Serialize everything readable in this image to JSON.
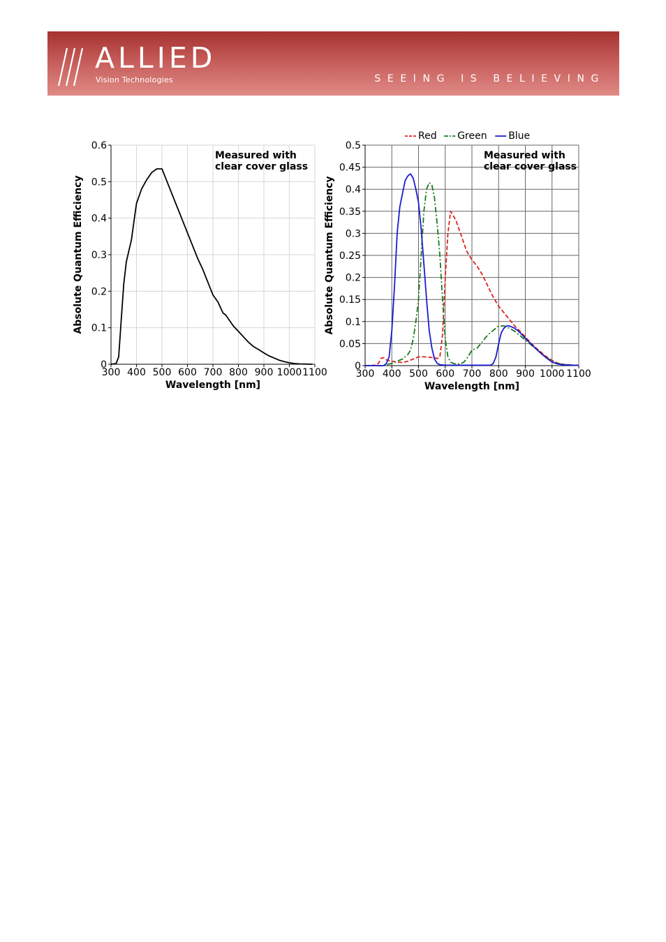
{
  "header": {
    "logo_text": "ALLIED",
    "logo_subtext": "Vision Technologies",
    "tagline": "SEEING IS BELIEVING"
  },
  "chart_data": [
    {
      "type": "line",
      "xlabel": "Wavelength [nm]",
      "ylabel": "Absolute Quantum Efficiency",
      "annotation": [
        "Measured with",
        "clear cover glass"
      ],
      "xlim": [
        300,
        1100
      ],
      "ylim": [
        0,
        0.6
      ],
      "xticks": [
        "300",
        "400",
        "500",
        "600",
        "700",
        "800",
        "900",
        "1000",
        "1100"
      ],
      "yticks": [
        "0",
        "0.1",
        "0.2",
        "0.3",
        "0.4",
        "0.5",
        "0.6"
      ],
      "grid": true,
      "series": [
        {
          "color": "#000000",
          "style": "solid",
          "x": [
            300,
            320,
            330,
            340,
            350,
            360,
            370,
            380,
            390,
            400,
            420,
            440,
            460,
            480,
            500,
            520,
            540,
            560,
            580,
            600,
            620,
            640,
            660,
            680,
            700,
            720,
            730,
            740,
            750,
            760,
            780,
            800,
            820,
            840,
            860,
            880,
            900,
            920,
            940,
            960,
            980,
            1000,
            1020,
            1040,
            1060,
            1080,
            1090
          ],
          "y": [
            0,
            0.002,
            0.02,
            0.12,
            0.22,
            0.28,
            0.31,
            0.34,
            0.39,
            0.44,
            0.48,
            0.505,
            0.525,
            0.535,
            0.535,
            0.5,
            0.465,
            0.43,
            0.395,
            0.36,
            0.325,
            0.29,
            0.26,
            0.225,
            0.19,
            0.17,
            0.155,
            0.14,
            0.135,
            0.125,
            0.105,
            0.09,
            0.075,
            0.06,
            0.048,
            0.04,
            0.031,
            0.023,
            0.017,
            0.011,
            0.007,
            0.004,
            0.002,
            0.001,
            0.0005,
            0.0002,
            0
          ]
        }
      ]
    },
    {
      "type": "line",
      "xlabel": "Wavelength [nm]",
      "ylabel": "Absolute Quantum Efficiency",
      "annotation": [
        "Measured with",
        "clear cover glass"
      ],
      "xlim": [
        300,
        1100
      ],
      "ylim": [
        0,
        0.5
      ],
      "xticks": [
        "300",
        "400",
        "500",
        "600",
        "700",
        "800",
        "900",
        "1000",
        "1100"
      ],
      "yticks": [
        "0",
        "0.05",
        "0.1",
        "0.15",
        "0.2",
        "0.25",
        "0.3",
        "0.35",
        "0.4",
        "0.45",
        "0.5"
      ],
      "grid": true,
      "legend_position": "top",
      "series": [
        {
          "name": "Red",
          "color": "#e02020",
          "style": "dashed",
          "x": [
            300,
            340,
            350,
            360,
            370,
            380,
            400,
            420,
            440,
            460,
            480,
            500,
            520,
            540,
            560,
            570,
            580,
            590,
            600,
            610,
            620,
            630,
            640,
            660,
            680,
            700,
            720,
            740,
            760,
            780,
            800,
            820,
            840,
            860,
            880,
            900,
            920,
            940,
            960,
            980,
            1000,
            1020,
            1040,
            1060,
            1080,
            1100
          ],
          "y": [
            0,
            0.001,
            0.005,
            0.017,
            0.018,
            0.013,
            0.01,
            0.008,
            0.007,
            0.01,
            0.015,
            0.02,
            0.02,
            0.019,
            0.018,
            0.016,
            0.02,
            0.07,
            0.2,
            0.3,
            0.35,
            0.34,
            0.33,
            0.295,
            0.26,
            0.24,
            0.225,
            0.205,
            0.18,
            0.155,
            0.135,
            0.12,
            0.105,
            0.09,
            0.078,
            0.065,
            0.052,
            0.04,
            0.03,
            0.02,
            0.012,
            0.006,
            0.003,
            0.002,
            0.001,
            0.001
          ]
        },
        {
          "name": "Green",
          "color": "#1a7a1a",
          "style": "dashdot",
          "x": [
            300,
            370,
            380,
            400,
            420,
            440,
            460,
            470,
            480,
            490,
            500,
            510,
            520,
            530,
            540,
            550,
            560,
            570,
            580,
            590,
            600,
            610,
            620,
            630,
            640,
            650,
            660,
            670,
            680,
            700,
            720,
            740,
            760,
            780,
            800,
            820,
            840,
            860,
            880,
            900,
            920,
            940,
            960,
            980,
            1000,
            1020,
            1040,
            1060,
            1080,
            1100
          ],
          "y": [
            0,
            0,
            0.002,
            0.005,
            0.01,
            0.015,
            0.025,
            0.035,
            0.06,
            0.1,
            0.15,
            0.25,
            0.35,
            0.4,
            0.415,
            0.41,
            0.38,
            0.32,
            0.25,
            0.15,
            0.06,
            0.02,
            0.008,
            0.005,
            0.004,
            0.004,
            0.005,
            0.008,
            0.015,
            0.035,
            0.04,
            0.055,
            0.07,
            0.08,
            0.09,
            0.09,
            0.085,
            0.078,
            0.068,
            0.058,
            0.048,
            0.038,
            0.028,
            0.018,
            0.01,
            0.005,
            0.003,
            0.002,
            0.001,
            0.001
          ]
        },
        {
          "name": "Blue",
          "color": "#1a1ad0",
          "style": "solid",
          "x": [
            300,
            370,
            380,
            390,
            400,
            410,
            420,
            430,
            440,
            450,
            460,
            470,
            480,
            490,
            500,
            510,
            520,
            530,
            540,
            550,
            560,
            570,
            580,
            600,
            620,
            640,
            660,
            680,
            700,
            770,
            780,
            790,
            800,
            810,
            820,
            830,
            840,
            860,
            880,
            900,
            920,
            940,
            960,
            980,
            1000,
            1020,
            1040,
            1060,
            1080,
            1100
          ],
          "y": [
            0,
            0,
            0.005,
            0.02,
            0.08,
            0.18,
            0.3,
            0.36,
            0.39,
            0.42,
            0.43,
            0.435,
            0.425,
            0.4,
            0.37,
            0.31,
            0.23,
            0.15,
            0.08,
            0.04,
            0.015,
            0.005,
            0.002,
            0.001,
            0.001,
            0.001,
            0.001,
            0.001,
            0.001,
            0.001,
            0.005,
            0.02,
            0.05,
            0.075,
            0.085,
            0.09,
            0.09,
            0.085,
            0.075,
            0.062,
            0.05,
            0.038,
            0.027,
            0.017,
            0.008,
            0.004,
            0.002,
            0.001,
            0.001,
            0.001
          ]
        }
      ]
    }
  ]
}
